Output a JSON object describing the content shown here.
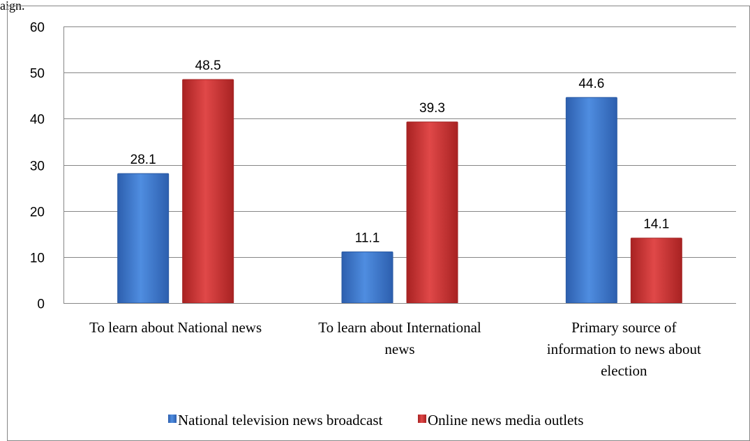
{
  "page": {
    "top_fragment": "aign."
  },
  "chart_data": {
    "type": "bar",
    "title": "",
    "xlabel": "",
    "ylabel": "",
    "ylim": [
      0,
      60
    ],
    "yticks": [
      0,
      10,
      20,
      30,
      40,
      50,
      60
    ],
    "y_tick_labels": [
      "0",
      "10",
      "20",
      "30",
      "40",
      "50",
      "60"
    ],
    "grid": true,
    "legend_position": "bottom",
    "categories": [
      "To learn about National news",
      "To learn about International news",
      "Primary source of information to news about election"
    ],
    "category_label_lines": [
      [
        "To learn about National news"
      ],
      [
        "To learn about International",
        "news"
      ],
      [
        "Primary source of",
        "information to news about",
        "election"
      ]
    ],
    "series": [
      {
        "name": "National television news broadcast",
        "color": "#3f7cd3",
        "values": [
          28.1,
          11.1,
          44.6
        ],
        "labels": [
          "28.1",
          "11.1",
          "44.6"
        ]
      },
      {
        "name": "Online news media outlets",
        "color": "#d63b3b",
        "values": [
          48.5,
          39.3,
          14.1
        ],
        "labels": [
          "48.5",
          "39.3",
          "14.1"
        ]
      }
    ]
  }
}
